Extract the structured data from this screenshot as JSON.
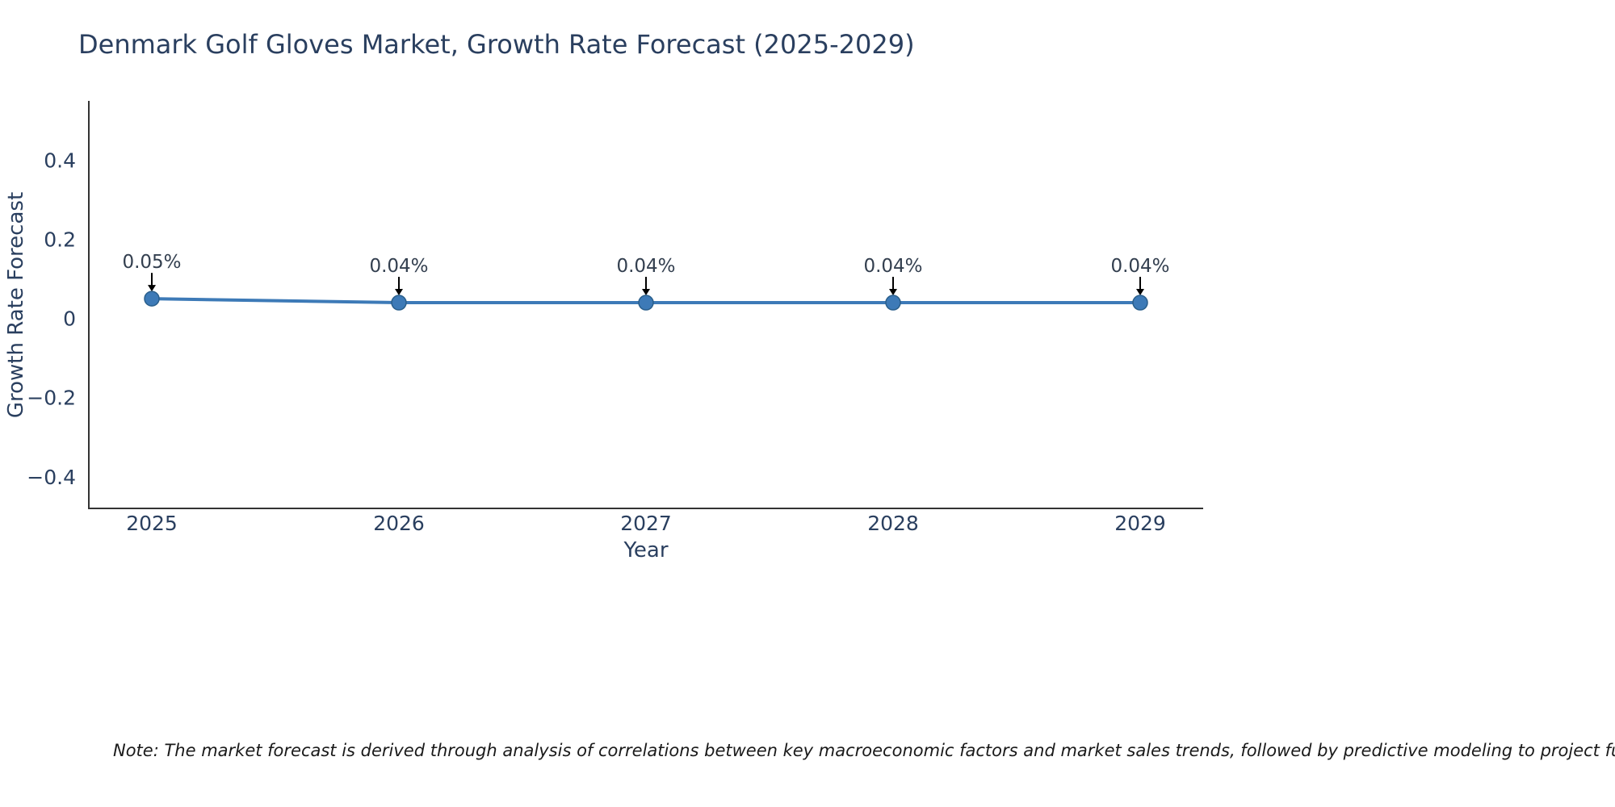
{
  "title": "Denmark Golf Gloves Market, Growth Rate Forecast (2025-2029)",
  "note": "Note: The market forecast is derived through analysis of correlations between key macroeconomic factors and market sales trends, followed by predictive modeling to project future sa",
  "colors": {
    "line": "#3d7ab7",
    "marker_fill": "#3d7ab7",
    "marker_edge": "#2a5f8c",
    "axis": "#333333",
    "text": "#2a3f5f",
    "annotation_text": "#333f4f",
    "arrow": "#000000"
  },
  "chart_data": {
    "type": "line",
    "x": [
      2025,
      2026,
      2027,
      2028,
      2029
    ],
    "values": [
      0.05,
      0.04,
      0.04,
      0.04,
      0.04
    ],
    "point_labels": [
      "0.05%",
      "0.04%",
      "0.04%",
      "0.04%",
      "0.04%"
    ],
    "title": "Denmark Golf Gloves Market, Growth Rate Forecast (2025-2029)",
    "xlabel": "Year",
    "ylabel": "Growth Rate Forecast",
    "xtick_labels": [
      "2025",
      "2026",
      "2027",
      "2028",
      "2029"
    ],
    "yticks": [
      -0.4,
      -0.2,
      0,
      0.2,
      0.4
    ],
    "ytick_labels": [
      "−0.4",
      "−0.2",
      "0",
      "0.2",
      "0.4"
    ],
    "ylim": [
      -0.48,
      0.55
    ],
    "grid": false,
    "legend": false
  }
}
